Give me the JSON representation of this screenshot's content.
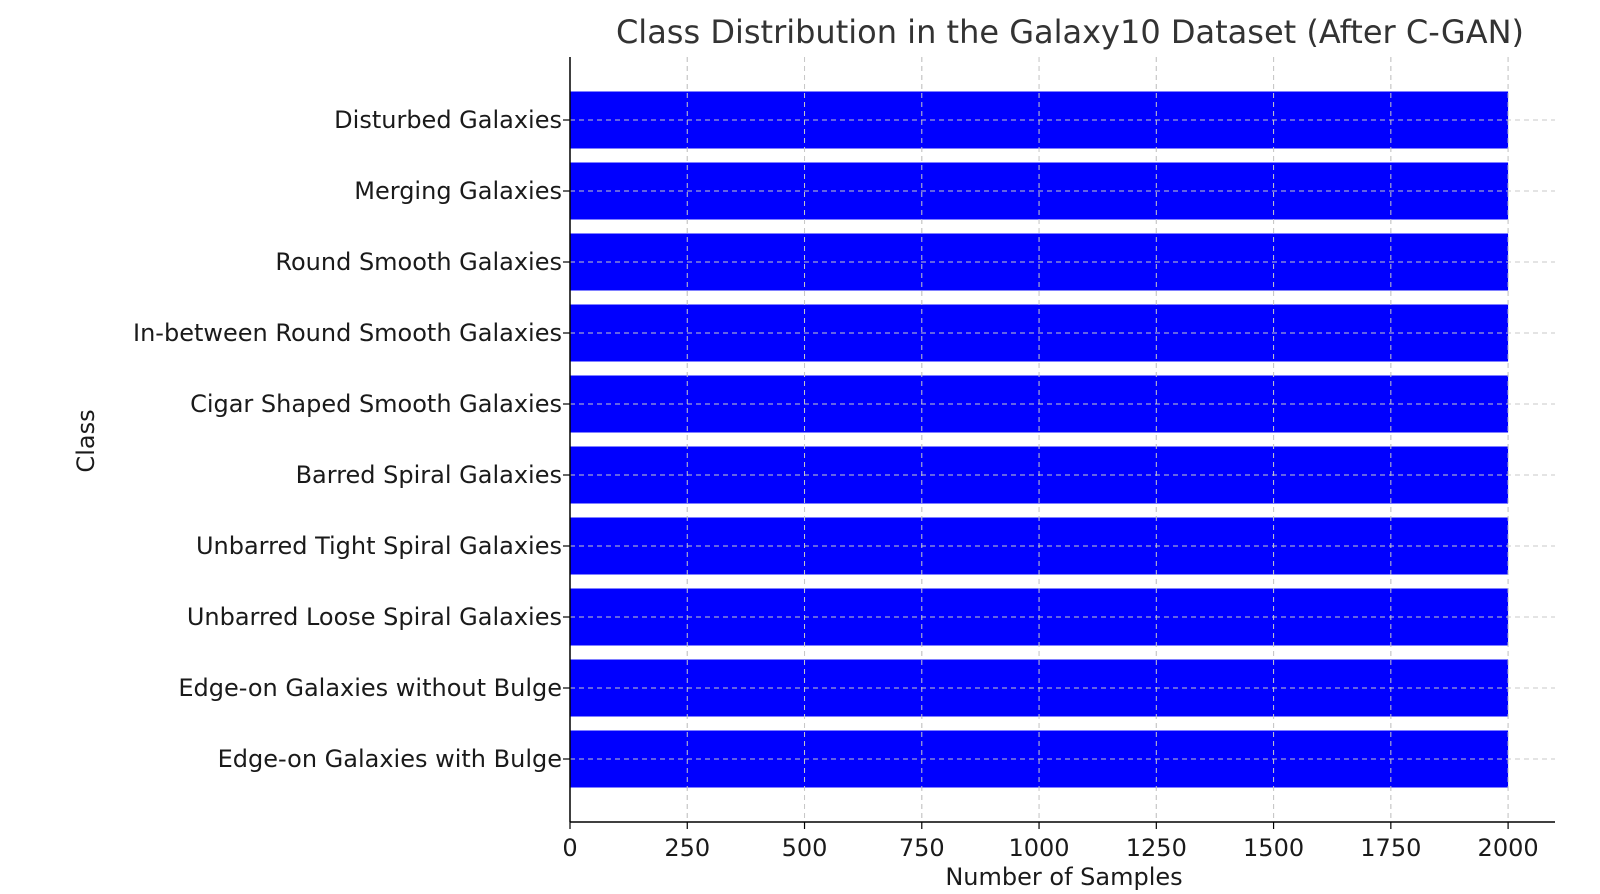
{
  "chart_data": {
    "type": "bar",
    "orientation": "horizontal",
    "title": "Class Distribution in the Galaxy10 Dataset (After C-GAN)",
    "xlabel": "Number of Samples",
    "ylabel": "Class",
    "categories": [
      "Edge-on Galaxies with Bulge",
      "Edge-on Galaxies without Bulge",
      "Unbarred Loose Spiral Galaxies",
      "Unbarred Tight Spiral Galaxies",
      "Barred Spiral Galaxies",
      "Cigar Shaped Smooth Galaxies",
      "In-between Round Smooth Galaxies",
      "Round Smooth Galaxies",
      "Merging Galaxies",
      "Disturbed Galaxies"
    ],
    "values": [
      2000,
      2000,
      2000,
      2000,
      2000,
      2000,
      2000,
      2000,
      2000,
      2000
    ],
    "xticks": [
      0,
      250,
      500,
      750,
      1000,
      1250,
      1500,
      1750,
      2000
    ],
    "xlim": [
      0,
      2100
    ],
    "bar_color": "#0000ff",
    "grid": true
  }
}
